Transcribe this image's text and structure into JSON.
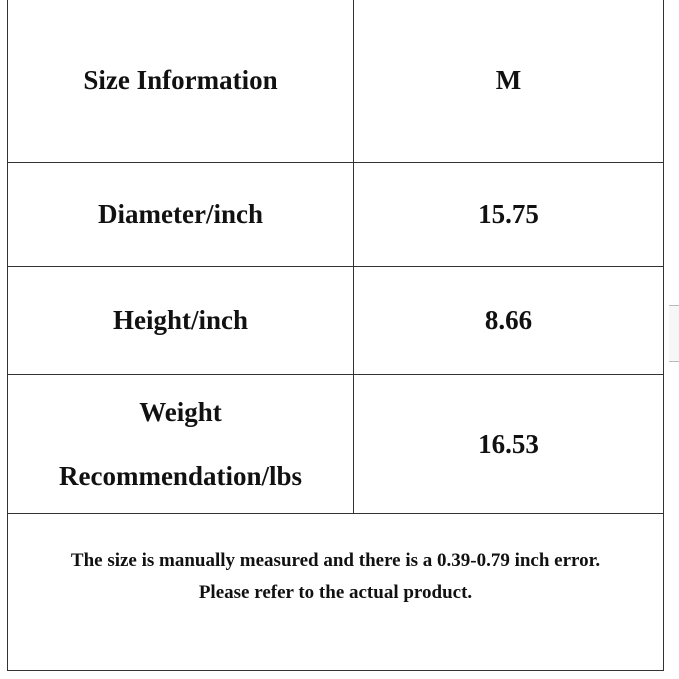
{
  "table": {
    "rows": [
      {
        "label": "Size Information",
        "value": "M"
      },
      {
        "label": "Diameter/inch",
        "value": "15.75"
      },
      {
        "label": "Height/inch",
        "value": "8.66"
      },
      {
        "label_line1": "Weight",
        "label_line2": "Recommendation/lbs",
        "value": "16.53"
      }
    ],
    "note_line1": "The size is manually measured and there is a 0.39-0.79 inch error.",
    "note_line2": "Please refer to the actual product."
  }
}
